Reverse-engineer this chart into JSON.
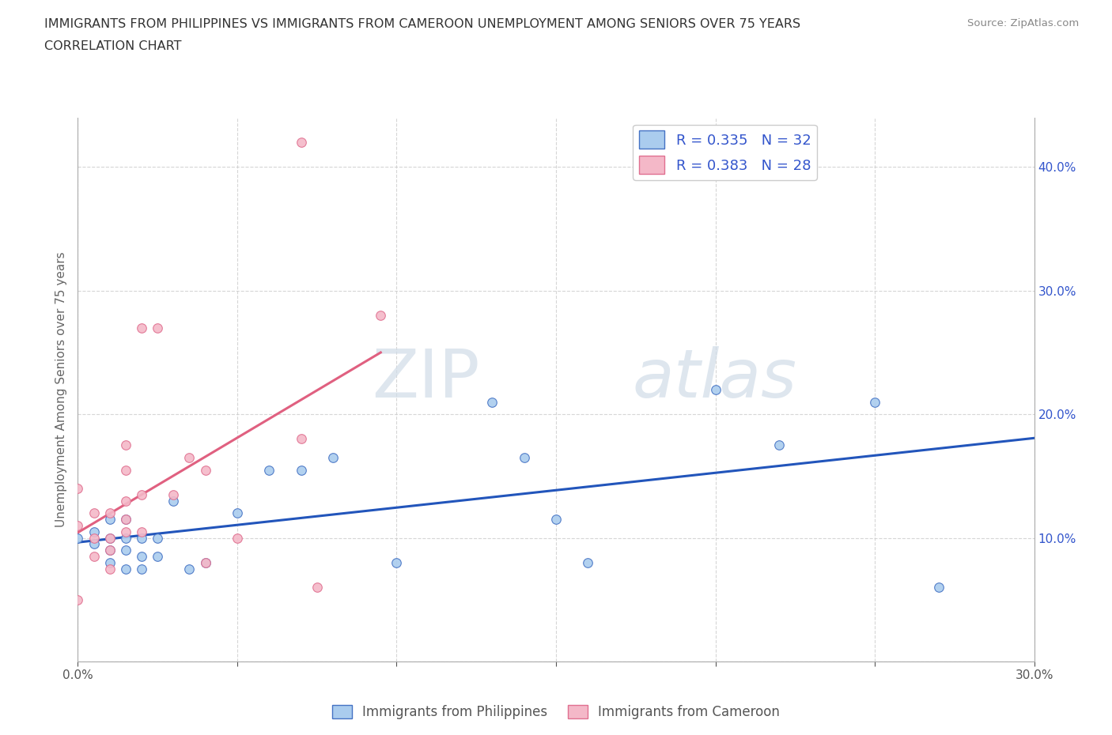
{
  "title_line1": "IMMIGRANTS FROM PHILIPPINES VS IMMIGRANTS FROM CAMEROON UNEMPLOYMENT AMONG SENIORS OVER 75 YEARS",
  "title_line2": "CORRELATION CHART",
  "source_text": "Source: ZipAtlas.com",
  "ylabel": "Unemployment Among Seniors over 75 years",
  "xlim": [
    0.0,
    0.3
  ],
  "ylim": [
    0.0,
    0.44
  ],
  "xticks": [
    0.0,
    0.05,
    0.1,
    0.15,
    0.2,
    0.25,
    0.3
  ],
  "yticks": [
    0.0,
    0.1,
    0.2,
    0.3,
    0.4
  ],
  "watermark_zip": "ZIP",
  "watermark_atlas": "atlas",
  "philippines_color": "#aaccee",
  "philippines_edge_color": "#4472c4",
  "cameroon_color": "#f4b8c8",
  "cameroon_edge_color": "#e07090",
  "philippines_line_color": "#2255bb",
  "cameroon_line_color": "#e06080",
  "R_philippines": 0.335,
  "N_philippines": 32,
  "R_cameroon": 0.383,
  "N_cameroon": 28,
  "legend_text_color": "#3355cc",
  "philippines_scatter_x": [
    0.0,
    0.005,
    0.005,
    0.01,
    0.01,
    0.01,
    0.01,
    0.015,
    0.015,
    0.015,
    0.015,
    0.02,
    0.02,
    0.02,
    0.025,
    0.025,
    0.03,
    0.035,
    0.04,
    0.05,
    0.06,
    0.07,
    0.08,
    0.1,
    0.13,
    0.14,
    0.15,
    0.16,
    0.2,
    0.22,
    0.25,
    0.27
  ],
  "philippines_scatter_y": [
    0.1,
    0.095,
    0.105,
    0.09,
    0.1,
    0.115,
    0.08,
    0.09,
    0.1,
    0.115,
    0.075,
    0.1,
    0.085,
    0.075,
    0.085,
    0.1,
    0.13,
    0.075,
    0.08,
    0.12,
    0.155,
    0.155,
    0.165,
    0.08,
    0.21,
    0.165,
    0.115,
    0.08,
    0.22,
    0.175,
    0.21,
    0.06
  ],
  "cameroon_scatter_x": [
    0.0,
    0.0,
    0.0,
    0.005,
    0.005,
    0.005,
    0.01,
    0.01,
    0.01,
    0.01,
    0.015,
    0.015,
    0.015,
    0.015,
    0.015,
    0.02,
    0.02,
    0.02,
    0.025,
    0.03,
    0.035,
    0.04,
    0.04,
    0.05,
    0.07,
    0.07,
    0.075,
    0.095
  ],
  "cameroon_scatter_y": [
    0.05,
    0.11,
    0.14,
    0.085,
    0.1,
    0.12,
    0.075,
    0.09,
    0.1,
    0.12,
    0.105,
    0.115,
    0.13,
    0.155,
    0.175,
    0.105,
    0.135,
    0.27,
    0.27,
    0.135,
    0.165,
    0.08,
    0.155,
    0.1,
    0.18,
    0.42,
    0.06,
    0.28
  ],
  "grid_color": "#cccccc",
  "bg_color": "#ffffff"
}
